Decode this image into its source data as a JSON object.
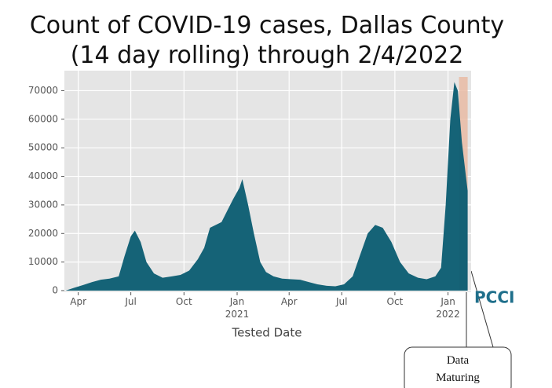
{
  "chart_data": {
    "type": "area",
    "title": "Count of COVID-19 cases, Dallas County (14 day rolling) through 2/4/2022",
    "xlabel": "Tested Date",
    "x": [
      "2020-03-10",
      "2020-03-25",
      "2020-04-10",
      "2020-04-25",
      "2020-05-10",
      "2020-05-25",
      "2020-06-10",
      "2020-06-20",
      "2020-07-01",
      "2020-07-08",
      "2020-07-18",
      "2020-07-28",
      "2020-08-10",
      "2020-08-25",
      "2020-09-10",
      "2020-09-25",
      "2020-10-10",
      "2020-10-25",
      "2020-11-05",
      "2020-11-15",
      "2020-11-25",
      "2020-12-05",
      "2020-12-15",
      "2020-12-25",
      "2021-01-05",
      "2021-01-10",
      "2021-01-20",
      "2021-01-30",
      "2021-02-10",
      "2021-02-20",
      "2021-03-05",
      "2021-03-20",
      "2021-04-05",
      "2021-04-20",
      "2021-05-05",
      "2021-05-20",
      "2021-06-05",
      "2021-06-20",
      "2021-07-05",
      "2021-07-20",
      "2021-08-01",
      "2021-08-15",
      "2021-08-28",
      "2021-09-10",
      "2021-09-25",
      "2021-10-10",
      "2021-10-25",
      "2021-11-10",
      "2021-11-25",
      "2021-12-10",
      "2021-12-20",
      "2021-12-28",
      "2022-01-05",
      "2022-01-12",
      "2022-01-18",
      "2022-01-25",
      "2022-02-01",
      "2022-02-04"
    ],
    "series": [
      {
        "name": "Cases",
        "color": "#0d5e73",
        "values": [
          0,
          1000,
          2000,
          3000,
          3800,
          4200,
          5000,
          12000,
          19000,
          21000,
          17000,
          10000,
          6000,
          4500,
          5000,
          5500,
          7000,
          11000,
          15000,
          22000,
          23000,
          24000,
          28000,
          32000,
          36000,
          39000,
          30000,
          20000,
          10000,
          6500,
          5000,
          4200,
          4000,
          3800,
          3000,
          2200,
          1700,
          1500,
          2200,
          5000,
          12000,
          20000,
          23000,
          22000,
          17000,
          10000,
          6000,
          4500,
          4000,
          5000,
          8000,
          30000,
          60000,
          73000,
          70000,
          52000,
          40000,
          35000
        ]
      }
    ],
    "xlim": [
      "2020-03-08",
      "2022-02-10"
    ],
    "xticks": [
      {
        "value": "2020-04-01",
        "label": "Apr"
      },
      {
        "value": "2020-07-01",
        "label": "Jul"
      },
      {
        "value": "2020-10-01",
        "label": "Oct"
      },
      {
        "value": "2021-01-01",
        "label": "Jan 2021"
      },
      {
        "value": "2021-04-01",
        "label": "Apr"
      },
      {
        "value": "2021-07-01",
        "label": "Jul"
      },
      {
        "value": "2021-10-01",
        "label": "Oct"
      },
      {
        "value": "2022-01-01",
        "label": "Jan 2022"
      }
    ],
    "ylim": [
      0,
      77000
    ],
    "yticks": [
      0,
      10000,
      20000,
      30000,
      40000,
      50000,
      60000,
      70000
    ],
    "grid": true,
    "shaded_region": {
      "range": [
        "2022-01-20",
        "2022-02-04"
      ],
      "color": "#e8b8a0"
    },
    "annotation": "Data Maturing",
    "logo": "PCCI"
  }
}
